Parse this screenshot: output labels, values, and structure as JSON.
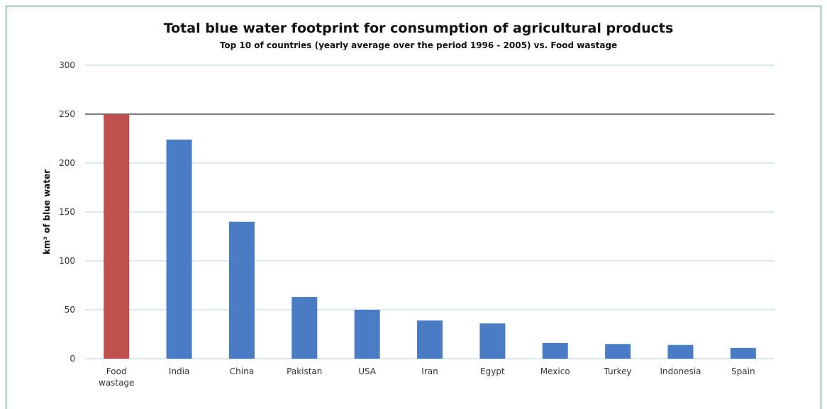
{
  "chart_data": {
    "type": "bar",
    "title": "Total blue water footprint for consumption  of agricultural products",
    "subtitle": "Top 10 of countries (yearly average over the period 1996 - 2005) vs. Food wastage",
    "ylabel": "km³ of blue water",
    "xlabel": "",
    "ylim": [
      0,
      300
    ],
    "yticks": [
      0,
      50,
      100,
      150,
      200,
      250,
      300
    ],
    "grid": true,
    "legend": "none",
    "categories": [
      "Food wastage",
      "India",
      "China",
      "Pakistan",
      "USA",
      "Iran",
      "Egypt",
      "Mexico",
      "Turkey",
      "Indonesia",
      "Spain"
    ],
    "values": [
      250,
      224,
      140,
      63,
      50,
      39,
      36,
      16,
      15,
      14,
      11
    ],
    "colors": {
      "highlight": "#c0504d",
      "bar": "#4a7cc6",
      "grid": "#b9d0e6",
      "reference_line": "#333333"
    },
    "reference_line": 250
  }
}
